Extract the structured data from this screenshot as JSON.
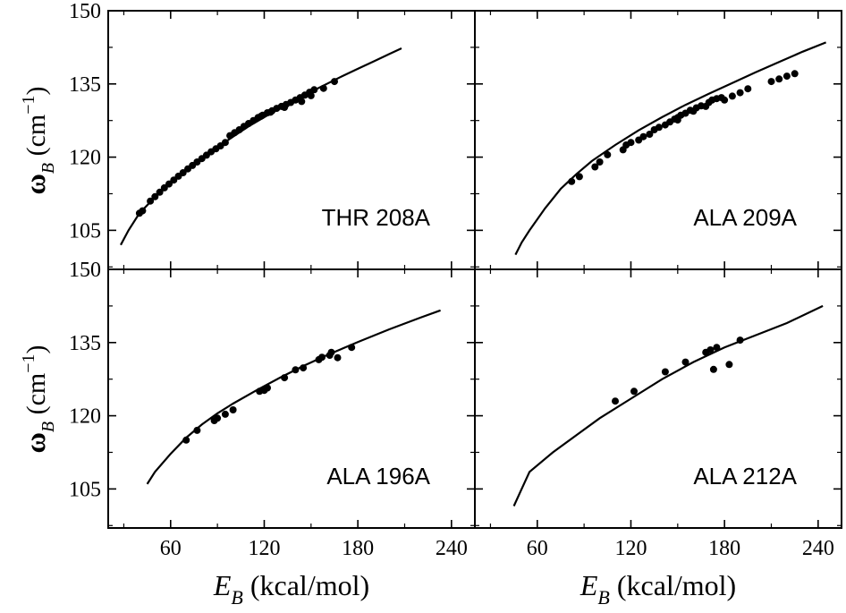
{
  "chart_data": {
    "type": "scatter",
    "layout": "2x2 grid, shared axes",
    "shared_x_axis": {
      "label_var": "E",
      "label_sub": "B",
      "label_unit": " (kcal/mol)",
      "xlim": [
        20,
        255
      ],
      "ticks": [
        60,
        120,
        180,
        240
      ],
      "tick_labels": [
        "60",
        "120",
        "180",
        "240"
      ]
    },
    "shared_y_axis": {
      "label_var": "ω",
      "label_sub": "B",
      "label_unit": " (cm",
      "label_exp": "−1",
      "label_close": ")",
      "ylim": [
        97,
        150
      ],
      "ticks": [
        105,
        120,
        135,
        150
      ],
      "tick_labels": [
        "105",
        "120",
        "135",
        "150"
      ]
    },
    "panels": [
      {
        "label": "THR 208A",
        "position": "top-left",
        "curve": [
          [
            28,
            102
          ],
          [
            33,
            105
          ],
          [
            40,
            108.5
          ],
          [
            50,
            111.8
          ],
          [
            60,
            114.8
          ],
          [
            70,
            117.3
          ],
          [
            80,
            119.7
          ],
          [
            90,
            122
          ],
          [
            100,
            124.2
          ],
          [
            110,
            126.3
          ],
          [
            120,
            128.2
          ],
          [
            130,
            130
          ],
          [
            140,
            131.7
          ],
          [
            150,
            133.4
          ],
          [
            160,
            135
          ],
          [
            170,
            136.6
          ],
          [
            180,
            138.1
          ],
          [
            190,
            139.6
          ],
          [
            200,
            141.1
          ],
          [
            208,
            142.3
          ]
        ],
        "points": [
          [
            40,
            108.5
          ],
          [
            42,
            109
          ],
          [
            47,
            111
          ],
          [
            50,
            111.9
          ],
          [
            53,
            112.8
          ],
          [
            56,
            113.7
          ],
          [
            59,
            114.5
          ],
          [
            62,
            115.3
          ],
          [
            65,
            116.1
          ],
          [
            68,
            116.8
          ],
          [
            71,
            117.6
          ],
          [
            74,
            118.3
          ],
          [
            77,
            119
          ],
          [
            80,
            119.7
          ],
          [
            83,
            120.4
          ],
          [
            86,
            121.1
          ],
          [
            89,
            121.7
          ],
          [
            92,
            122.3
          ],
          [
            95,
            123
          ],
          [
            98,
            124.4
          ],
          [
            101,
            125
          ],
          [
            104,
            125.6
          ],
          [
            107,
            126.3
          ],
          [
            110,
            126.9
          ],
          [
            113,
            127.5
          ],
          [
            116,
            128.1
          ],
          [
            119,
            128.6
          ],
          [
            122,
            129.1
          ],
          [
            125,
            129.5
          ],
          [
            128,
            130
          ],
          [
            131,
            130.4
          ],
          [
            134,
            130.8
          ],
          [
            137,
            131.2
          ],
          [
            140,
            131.7
          ],
          [
            143,
            132.2
          ],
          [
            146,
            132.7
          ],
          [
            149,
            133.3
          ],
          [
            152,
            133.8
          ],
          [
            158,
            134.1
          ],
          [
            165,
            135.5
          ],
          [
            118,
            128.4
          ],
          [
            124,
            129.2
          ],
          [
            133,
            130.2
          ],
          [
            144,
            131.4
          ],
          [
            150,
            132.6
          ]
        ]
      },
      {
        "label": "ALA 209A",
        "position": "top-right",
        "curve": [
          [
            46,
            100
          ],
          [
            50,
            102.5
          ],
          [
            55,
            105
          ],
          [
            65,
            109.5
          ],
          [
            75,
            113.5
          ],
          [
            85,
            116.5
          ],
          [
            95,
            119.2
          ],
          [
            110,
            122.5
          ],
          [
            125,
            125.5
          ],
          [
            140,
            128.2
          ],
          [
            155,
            130.7
          ],
          [
            170,
            133
          ],
          [
            185,
            135.2
          ],
          [
            200,
            137.4
          ],
          [
            215,
            139.5
          ],
          [
            230,
            141.6
          ],
          [
            245,
            143.5
          ]
        ],
        "points": [
          [
            82,
            115
          ],
          [
            87,
            116
          ],
          [
            97,
            118
          ],
          [
            100,
            119
          ],
          [
            105,
            120.5
          ],
          [
            115,
            121.5
          ],
          [
            117,
            122.5
          ],
          [
            120,
            123
          ],
          [
            125,
            123.5
          ],
          [
            128,
            124.2
          ],
          [
            132,
            124.7
          ],
          [
            135,
            125.6
          ],
          [
            138,
            126.1
          ],
          [
            142,
            126.6
          ],
          [
            145,
            127.2
          ],
          [
            148,
            127.8
          ],
          [
            150,
            128.1
          ],
          [
            152,
            128.6
          ],
          [
            155,
            129
          ],
          [
            158,
            129.6
          ],
          [
            162,
            130.1
          ],
          [
            165,
            130.5
          ],
          [
            170,
            131.2
          ],
          [
            172,
            131.7
          ],
          [
            175,
            132
          ],
          [
            178,
            132.2
          ],
          [
            180,
            131.7
          ],
          [
            185,
            132.5
          ],
          [
            190,
            133.2
          ],
          [
            195,
            134
          ],
          [
            210,
            135.5
          ],
          [
            215,
            136
          ],
          [
            220,
            136.6
          ],
          [
            225,
            137.1
          ],
          [
            150,
            127.6
          ],
          [
            160,
            129.4
          ],
          [
            168,
            130.4
          ]
        ]
      },
      {
        "label": "ALA 196A",
        "position": "bottom-left",
        "curve": [
          [
            45,
            106
          ],
          [
            50,
            108.5
          ],
          [
            60,
            112.2
          ],
          [
            70,
            115.5
          ],
          [
            80,
            118.2
          ],
          [
            90,
            120.5
          ],
          [
            100,
            122.5
          ],
          [
            115,
            125.2
          ],
          [
            130,
            127.8
          ],
          [
            145,
            130.2
          ],
          [
            160,
            132.4
          ],
          [
            180,
            135.1
          ],
          [
            200,
            137.7
          ],
          [
            220,
            140.1
          ],
          [
            233,
            141.6
          ]
        ],
        "points": [
          [
            70,
            115
          ],
          [
            77,
            117
          ],
          [
            88,
            119
          ],
          [
            90,
            119.5
          ],
          [
            95,
            120.3
          ],
          [
            100,
            121.2
          ],
          [
            117,
            125
          ],
          [
            120,
            125.2
          ],
          [
            122,
            125.7
          ],
          [
            133,
            127.8
          ],
          [
            140,
            129.4
          ],
          [
            145,
            129.8
          ],
          [
            155,
            131.5
          ],
          [
            157,
            132
          ],
          [
            162,
            132.4
          ],
          [
            163,
            133
          ],
          [
            167,
            131.9
          ],
          [
            176,
            134
          ]
        ]
      },
      {
        "label": "ALA 212A",
        "position": "bottom-right",
        "curve": [
          [
            45,
            101.5
          ],
          [
            50,
            105
          ],
          [
            55,
            108.5
          ],
          [
            70,
            112.5
          ],
          [
            85,
            116
          ],
          [
            100,
            119.5
          ],
          [
            120,
            123.5
          ],
          [
            140,
            127.5
          ],
          [
            160,
            131
          ],
          [
            180,
            134
          ],
          [
            200,
            136.5
          ],
          [
            220,
            139
          ],
          [
            243,
            142.5
          ]
        ],
        "points": [
          [
            110,
            123
          ],
          [
            122,
            125
          ],
          [
            142,
            129
          ],
          [
            155,
            131
          ],
          [
            168,
            133
          ],
          [
            171,
            133.5
          ],
          [
            175,
            134
          ],
          [
            173,
            129.5
          ],
          [
            183,
            130.5
          ],
          [
            190,
            135.5
          ]
        ]
      }
    ]
  }
}
